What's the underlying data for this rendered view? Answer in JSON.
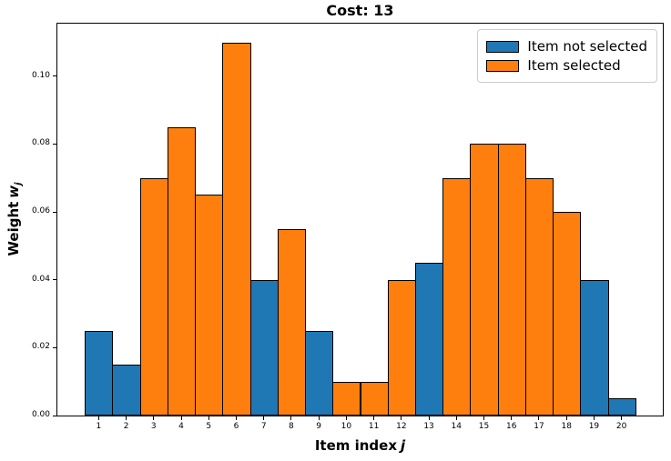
{
  "chart_data": {
    "type": "bar",
    "title": "Cost: 13",
    "xlabel": "Item index",
    "xlabel_var": "j",
    "ylabel": "Weight",
    "ylabel_var": "w",
    "ylabel_sub": "j",
    "categories": [
      "1",
      "2",
      "3",
      "4",
      "5",
      "6",
      "7",
      "8",
      "9",
      "10",
      "11",
      "12",
      "13",
      "14",
      "15",
      "16",
      "17",
      "18",
      "19",
      "20"
    ],
    "values": [
      0.025,
      0.015,
      0.07,
      0.085,
      0.065,
      0.11,
      0.04,
      0.055,
      0.025,
      0.01,
      0.01,
      0.04,
      0.045,
      0.07,
      0.08,
      0.08,
      0.07,
      0.06,
      0.04,
      0.005
    ],
    "selected": [
      false,
      false,
      true,
      true,
      true,
      true,
      false,
      true,
      false,
      true,
      true,
      true,
      false,
      true,
      true,
      true,
      true,
      true,
      false,
      false
    ],
    "series_colors": {
      "not_selected": "#1f77b4",
      "selected": "#ff7f0e",
      "edge": "#000000"
    },
    "legend": [
      {
        "label": "Item not selected",
        "color": "#1f77b4"
      },
      {
        "label": "Item selected",
        "color": "#ff7f0e"
      }
    ],
    "legend_position": "upper right",
    "y_ticks": [
      0,
      0.02,
      0.04,
      0.06,
      0.08,
      0.1
    ],
    "y_tick_labels": [
      "0.00",
      "0.02",
      "0.04",
      "0.06",
      "0.08",
      "0.10"
    ],
    "ylim": [
      0,
      0.1155
    ],
    "xlim": [
      -0.5,
      21.5
    ],
    "grid": false
  }
}
